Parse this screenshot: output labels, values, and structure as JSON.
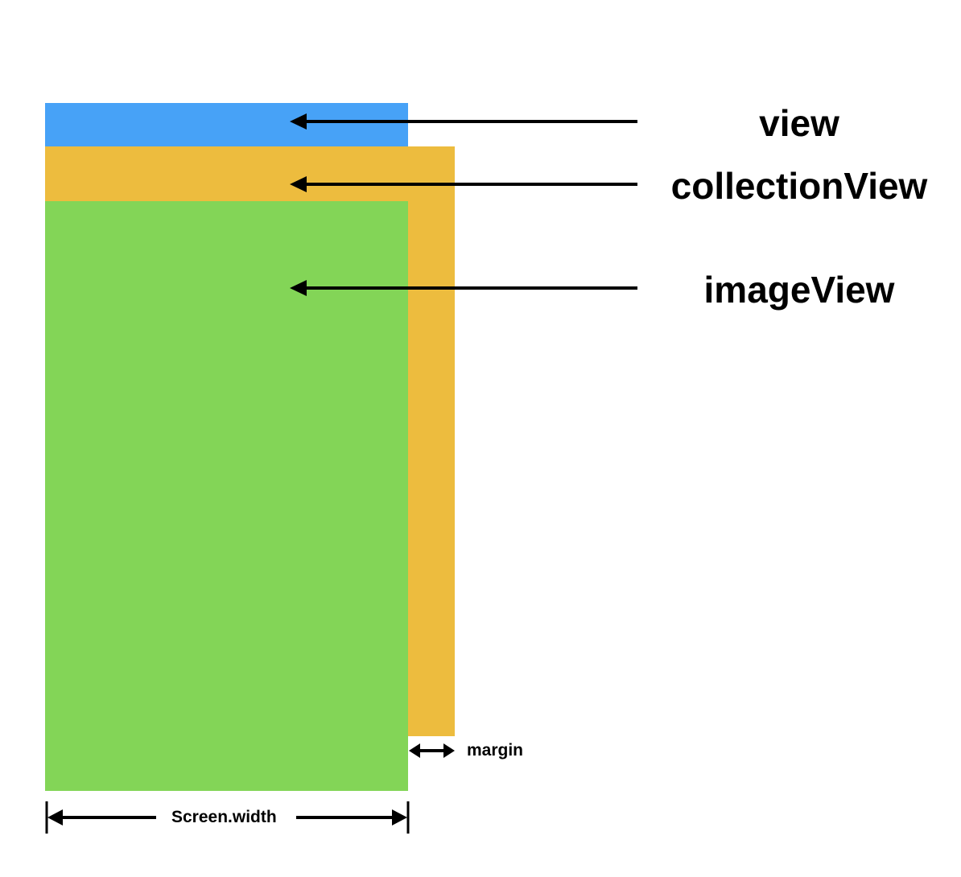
{
  "labels": {
    "view": "view",
    "collection_view": "collectionView",
    "image_view": "imageView",
    "margin": "margin",
    "screen_width": "Screen.width"
  },
  "colors": {
    "view": "#47A2F7",
    "collection_view": "#EDBC3E",
    "image_view": "#83D557",
    "arrow": "#000000"
  }
}
